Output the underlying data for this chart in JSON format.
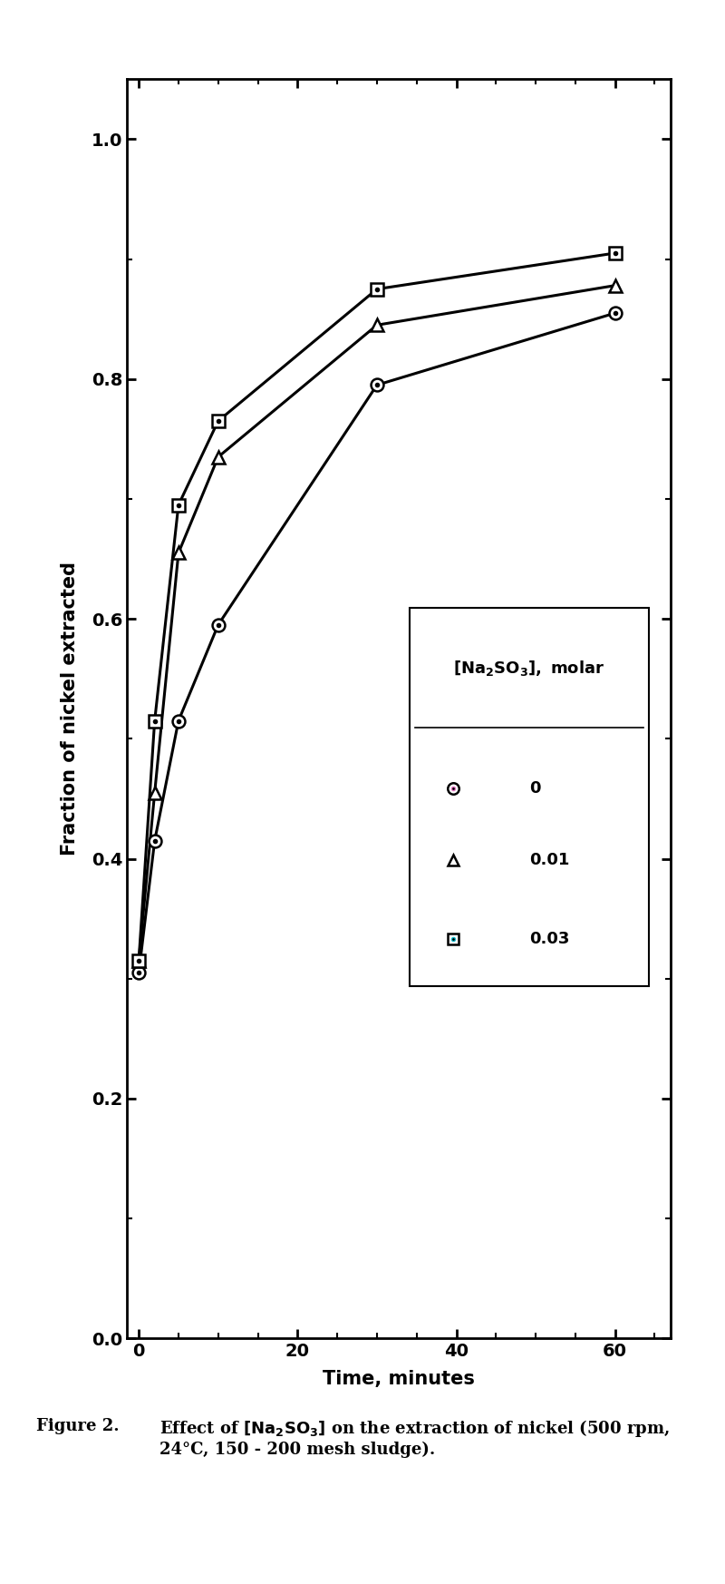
{
  "series": [
    {
      "label": "0",
      "x": [
        0,
        2,
        5,
        10,
        30,
        60
      ],
      "y": [
        0.305,
        0.415,
        0.515,
        0.595,
        0.795,
        0.855
      ],
      "marker": "circle_dot"
    },
    {
      "label": "0.01",
      "x": [
        0,
        2,
        5,
        10,
        30,
        60
      ],
      "y": [
        0.315,
        0.455,
        0.655,
        0.735,
        0.845,
        0.878
      ],
      "marker": "triangle"
    },
    {
      "label": "0.03",
      "x": [
        0,
        2,
        5,
        10,
        30,
        60
      ],
      "y": [
        0.315,
        0.515,
        0.695,
        0.765,
        0.875,
        0.905
      ],
      "marker": "square_dot"
    }
  ],
  "xlabel": "Time, minutes",
  "ylabel": "Fraction of nickel extracted",
  "xlim": [
    -1.5,
    67
  ],
  "ylim": [
    0.0,
    1.05
  ],
  "xticks": [
    0,
    20,
    40,
    60
  ],
  "yticks": [
    0,
    0.2,
    0.4,
    0.6,
    0.8,
    1.0
  ],
  "figsize": [
    8.0,
    17.46
  ],
  "dpi": 100,
  "linewidth": 2.2,
  "markersize": 10,
  "spine_linewidth": 2.0,
  "legend_title": "[Na$_2$SO$_3$], molar",
  "legend_entries": [
    {
      "marker": "circle_dot",
      "label": "0"
    },
    {
      "marker": "triangle",
      "label": "0.01"
    },
    {
      "marker": "square_dot",
      "label": "0.03"
    }
  ],
  "caption_line1": "Effect of [Na",
  "caption_line2": "24°C, 150 - 200 mesh sludge)."
}
